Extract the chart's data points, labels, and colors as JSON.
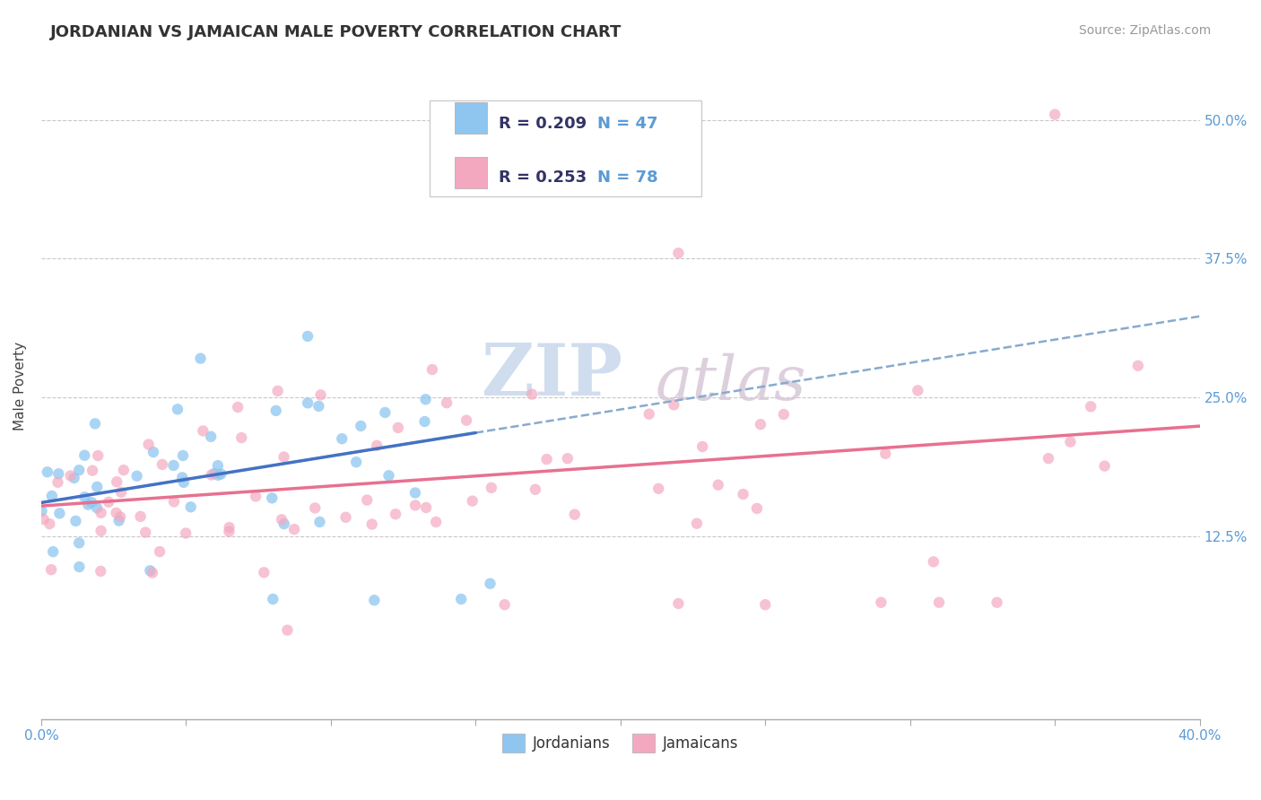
{
  "title": "JORDANIAN VS JAMAICAN MALE POVERTY CORRELATION CHART",
  "source": "Source: ZipAtlas.com",
  "ylabel": "Male Poverty",
  "xlim": [
    0.0,
    0.4
  ],
  "ylim": [
    -0.04,
    0.56
  ],
  "xticks": [
    0.0,
    0.05,
    0.1,
    0.15,
    0.2,
    0.25,
    0.3,
    0.35,
    0.4
  ],
  "yticks": [
    0.125,
    0.25,
    0.375,
    0.5
  ],
  "yticklabels": [
    "12.5%",
    "25.0%",
    "37.5%",
    "50.0%"
  ],
  "legend_r1": "R = 0.209",
  "legend_n1": "N = 47",
  "legend_r2": "R = 0.253",
  "legend_n2": "N = 78",
  "color_jordan": "#8EC6F0",
  "color_jamaica": "#F4A8C0",
  "color_jordan_line": "#4472C4",
  "color_jamaica_line": "#E87090",
  "color_dashed": "#88AACE",
  "background_color": "#FFFFFF",
  "grid_color": "#C8C8C8",
  "watermark": "ZIPatlas",
  "watermark_color_zip": "#C5D8EC",
  "watermark_color_atlas": "#D4C5D8",
  "title_color": "#333333",
  "tick_color": "#5B9BD5"
}
